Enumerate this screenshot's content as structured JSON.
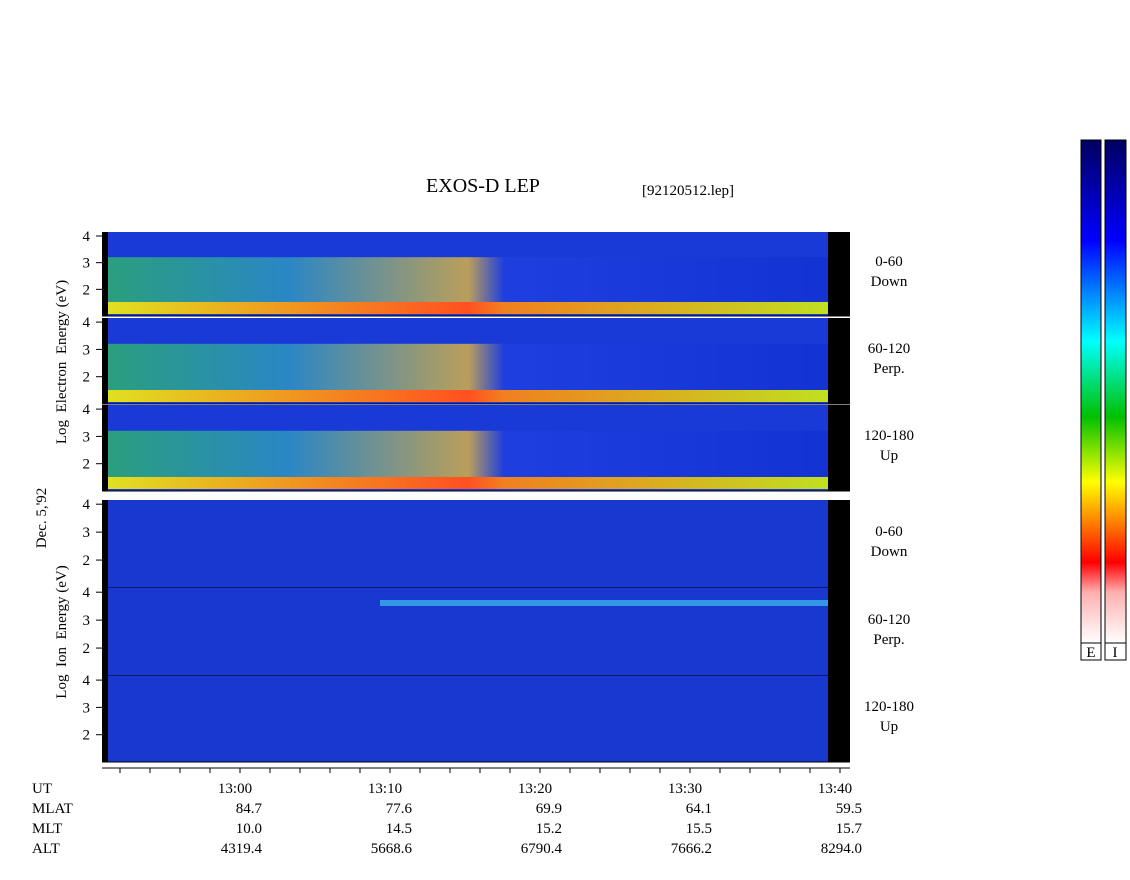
{
  "title": "EXOS-D LEP",
  "file": "[92120512.lep]",
  "date": "Dec. 5,'92",
  "electron": {
    "label": "Log  Electron  Energy (eV)",
    "ylim": [
      1,
      4.15
    ],
    "yticks": [
      2,
      3,
      4
    ],
    "panels": [
      {
        "range": "0-60",
        "dir": "Down"
      },
      {
        "range": "60-120",
        "dir": "Perp."
      },
      {
        "range": "120-180",
        "dir": "Up"
      }
    ]
  },
  "ion": {
    "label": "Log  Ion  Energy (eV)",
    "ylim": [
      1,
      4.15
    ],
    "yticks": [
      2,
      3,
      4
    ],
    "panels": [
      {
        "range": "0-60",
        "dir": "Down"
      },
      {
        "range": "60-120",
        "dir": "Perp."
      },
      {
        "range": "120-180",
        "dir": "Up"
      }
    ]
  },
  "time_axis": {
    "rows": [
      {
        "label": "UT",
        "values": [
          "13:00",
          "13:10",
          "13:20",
          "13:30",
          "13:40"
        ]
      },
      {
        "label": "MLAT",
        "values": [
          "84.7",
          "77.6",
          "69.9",
          "64.1",
          "59.5"
        ]
      },
      {
        "label": "MLT",
        "values": [
          "10.0",
          "14.5",
          "15.2",
          "15.5",
          "15.7"
        ]
      },
      {
        "label": "ALT",
        "values": [
          "4319.4",
          "5668.6",
          "6790.4",
          "7666.2",
          "8294.0"
        ]
      }
    ]
  },
  "colorbar": {
    "labels": [
      "E",
      "I"
    ]
  }
}
